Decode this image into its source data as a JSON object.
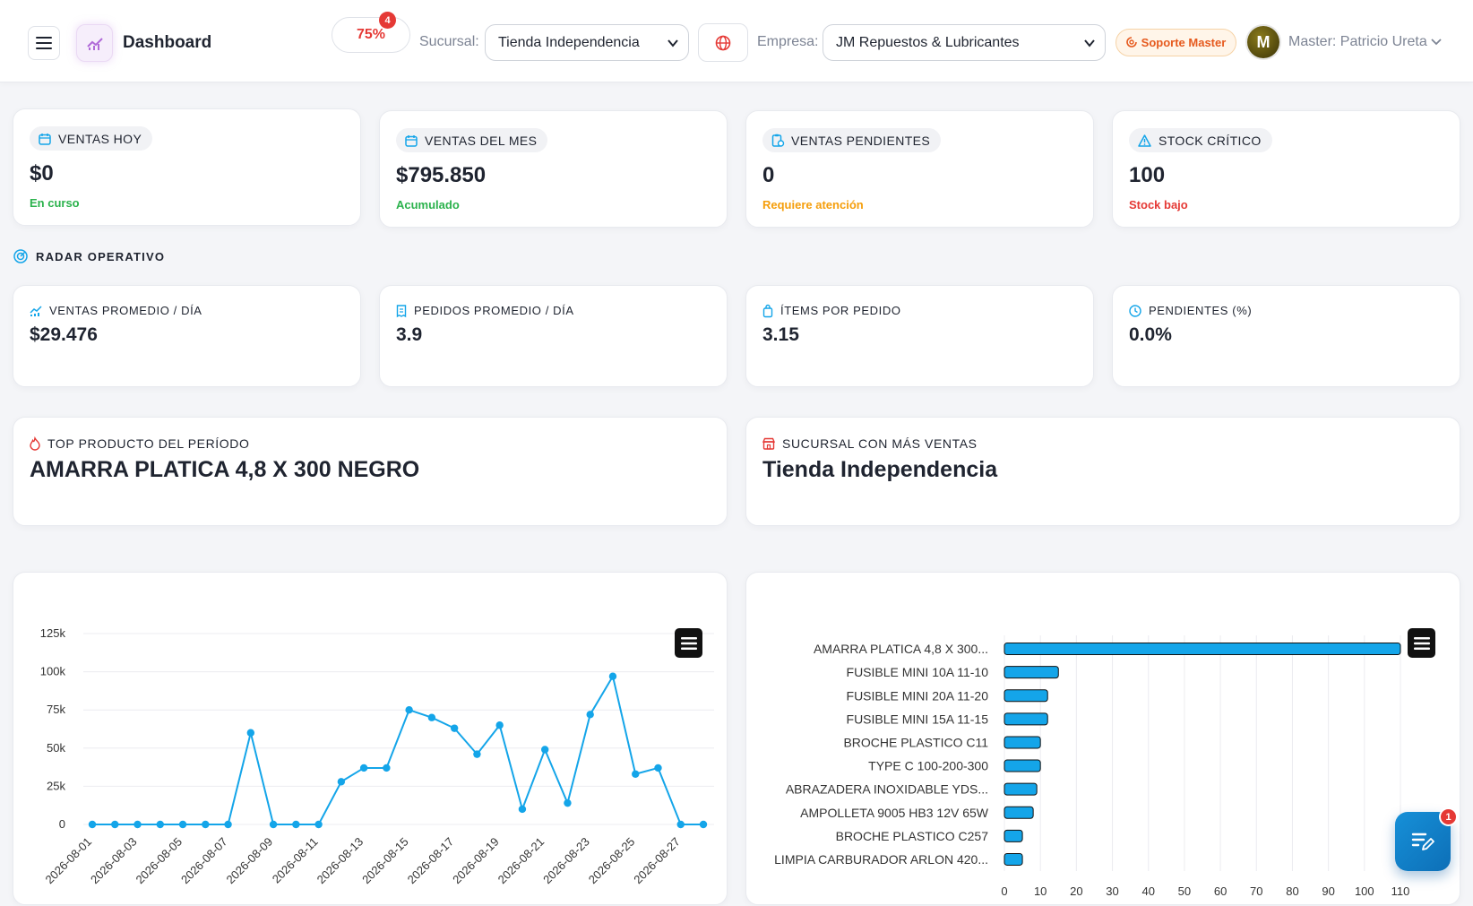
{
  "header": {
    "title": "Dashboard",
    "progress": "75%",
    "progress_badge": "4",
    "branch_label": "Sucursal:",
    "branch_value": "Tienda Independencia",
    "company_label": "Empresa:",
    "company_value": "JM Repuestos & Lubricantes",
    "support_label": "Soporte Master",
    "avatar_initial": "M",
    "user_name": "Master: Patricio Ureta"
  },
  "kpis": [
    {
      "label": "VENTAS HOY",
      "value": "$0",
      "sub": "En curso",
      "color": "#2bb24c",
      "icon": "calendar-icon"
    },
    {
      "label": "VENTAS DEL MES",
      "value": "$795.850",
      "sub": "Acumulado",
      "color": "#2bb24c",
      "icon": "calendar-icon"
    },
    {
      "label": "VENTAS PENDIENTES",
      "value": "0",
      "sub": "Requiere atención",
      "color": "#f59e0b",
      "icon": "clipboard-clock-icon"
    },
    {
      "label": "STOCK CRÍTICO",
      "value": "100",
      "sub": "Stock bajo",
      "color": "#e53935",
      "icon": "warning-icon"
    }
  ],
  "radar": {
    "title": "RADAR OPERATIVO",
    "items": [
      {
        "label": "VENTAS PROMEDIO / DÍA",
        "value": "$29.476",
        "icon": "chart-icon"
      },
      {
        "label": "PEDIDOS PROMEDIO / DÍA",
        "value": "3.9",
        "icon": "receipt-icon"
      },
      {
        "label": "ÍTEMS POR PEDIDO",
        "value": "3.15",
        "icon": "bag-icon"
      },
      {
        "label": "PENDIENTES (%)",
        "value": "0.0%",
        "icon": "clock-icon"
      }
    ]
  },
  "highlights": {
    "top_product_label": "TOP PRODUCTO DEL PERÍODO",
    "top_product_value": "AMARRA PLATICA 4,8 X 300 NEGRO",
    "top_branch_label": "SUCURSAL CON MÁS VENTAS",
    "top_branch_value": "Tienda Independencia"
  },
  "colors": {
    "accent": "#14a5e9",
    "danger": "#e53935"
  },
  "chart_data": [
    {
      "type": "line",
      "x": [
        "2026-08-01",
        "2026-08-02",
        "2026-08-03",
        "2026-08-04",
        "2026-08-05",
        "2026-08-06",
        "2026-08-07",
        "2026-08-08",
        "2026-08-09",
        "2026-08-10",
        "2026-08-11",
        "2026-08-12",
        "2026-08-13",
        "2026-08-14",
        "2026-08-15",
        "2026-08-16",
        "2026-08-17",
        "2026-08-18",
        "2026-08-19",
        "2026-08-20",
        "2026-08-21",
        "2026-08-22",
        "2026-08-23",
        "2026-08-24",
        "2026-08-25",
        "2026-08-26",
        "2026-08-27",
        "2026-08-28"
      ],
      "values": [
        0,
        0,
        0,
        0,
        0,
        0,
        0,
        60000,
        0,
        0,
        0,
        28000,
        37000,
        37000,
        75000,
        70000,
        63000,
        46000,
        65000,
        10000,
        49000,
        14000,
        72000,
        97000,
        33000,
        37000,
        0,
        0
      ],
      "y_ticks": [
        0,
        25000,
        50000,
        75000,
        100000,
        125000
      ],
      "y_tick_labels": [
        "0",
        "25k",
        "50k",
        "75k",
        "100k",
        "125k"
      ],
      "x_tick_labels": [
        "2026-08-01",
        "2026-08-03",
        "2026-08-05",
        "2026-08-07",
        "2026-08-09",
        "2026-08-11",
        "2026-08-13",
        "2026-08-15",
        "2026-08-17",
        "2026-08-19",
        "2026-08-21",
        "2026-08-23",
        "2026-08-25",
        "2026-08-27"
      ],
      "ylim": [
        0,
        125000
      ],
      "color": "#14a5e9"
    },
    {
      "type": "bar",
      "orientation": "horizontal",
      "categories": [
        "AMARRA PLATICA 4,8 X 300...",
        "FUSIBLE MINI 10A 11-10",
        "FUSIBLE MINI 20A 11-20",
        "FUSIBLE MINI 15A 11-15",
        "BROCHE PLASTICO C11",
        "TYPE C 100-200-300",
        "ABRAZADERA INOXIDABLE YDS...",
        "AMPOLLETA 9005 HB3 12V 65W",
        "BROCHE PLASTICO C257",
        "LIMPIA CARBURADOR ARLON 420..."
      ],
      "values": [
        110,
        15,
        12,
        12,
        10,
        10,
        9,
        8,
        5,
        5
      ],
      "x_ticks": [
        0,
        10,
        20,
        30,
        40,
        50,
        60,
        70,
        80,
        90,
        100,
        110
      ],
      "xlim": [
        0,
        110
      ],
      "color": "#14a5e9"
    }
  ]
}
